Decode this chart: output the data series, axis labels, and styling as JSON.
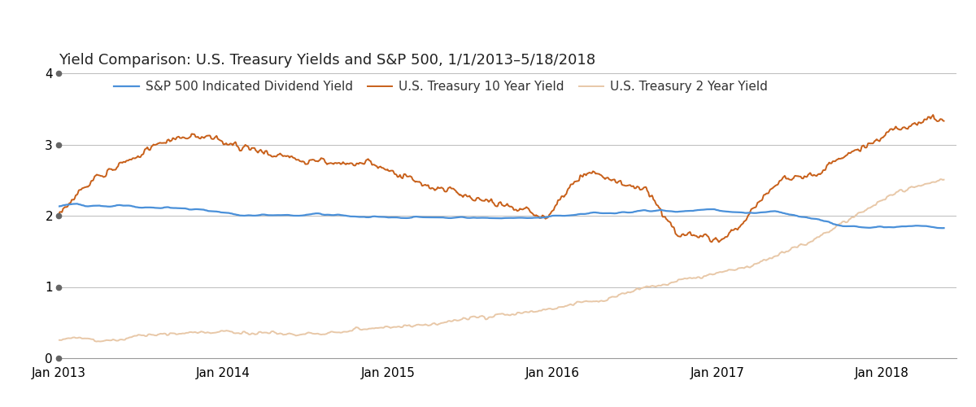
{
  "title": "Yield Comparison: U.S. Treasury Yields and S&P 500, 1/1/2013–5/18/2018",
  "legend_labels": [
    "S&P 500 Indicated Dividend Yield",
    "U.S. Treasury 10 Year Yield",
    "U.S. Treasury 2 Year Yield"
  ],
  "colors": {
    "sp500": "#4a90d9",
    "t10y": "#c8601a",
    "t2y": "#e8c8a8"
  },
  "ylim": [
    0.0,
    4.0
  ],
  "yticks": [
    0.0,
    1.0,
    2.0,
    3.0,
    4.0
  ],
  "background": "#ffffff",
  "title_fontsize": 13,
  "legend_fontsize": 11,
  "tick_fontsize": 11,
  "linewidth_sp500": 1.6,
  "linewidth_t10y": 1.4,
  "linewidth_t2y": 1.4
}
